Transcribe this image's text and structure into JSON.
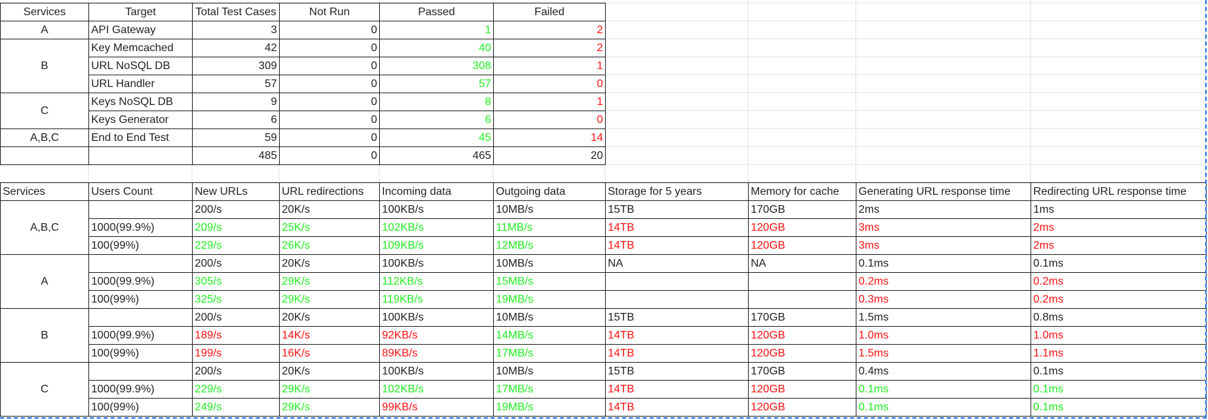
{
  "summary": {
    "headers": [
      "Services",
      "Target",
      "Total Test Cases",
      "Not Run",
      "Passed",
      "Failed"
    ],
    "rows": [
      {
        "service": "A",
        "target": "API Gateway",
        "total": "3",
        "not_run": "0",
        "passed": "1",
        "failed": "2"
      },
      {
        "service": "B",
        "target": "Key Memcached",
        "total": "42",
        "not_run": "0",
        "passed": "40",
        "failed": "2"
      },
      {
        "service": "",
        "target": "URL NoSQL DB",
        "total": "309",
        "not_run": "0",
        "passed": "308",
        "failed": "1"
      },
      {
        "service": "",
        "target": "URL Handler",
        "total": "57",
        "not_run": "0",
        "passed": "57",
        "failed": "0"
      },
      {
        "service": "C",
        "target": "Keys NoSQL DB",
        "total": "9",
        "not_run": "0",
        "passed": "8",
        "failed": "1"
      },
      {
        "service": "",
        "target": "Keys Generator",
        "total": "6",
        "not_run": "0",
        "passed": "6",
        "failed": "0"
      },
      {
        "service": "A,B,C",
        "target": "End to End Test",
        "total": "59",
        "not_run": "0",
        "passed": "45",
        "failed": "14"
      }
    ],
    "totals": {
      "total": "485",
      "not_run": "0",
      "passed": "465",
      "failed": "20"
    }
  },
  "perf": {
    "headers": [
      "Services",
      "Users Count",
      "New URLs",
      "URL redirections",
      "Incoming data",
      "Outgoing data",
      "Storage for 5 years",
      "Memory for cache",
      "Generating URL response time",
      "Redirecting URL response time"
    ],
    "groups": [
      {
        "service": "A,B,C",
        "rows": [
          {
            "users": "",
            "cells": [
              [
                "200/s",
                "n"
              ],
              [
                "20K/s",
                "n"
              ],
              [
                "100KB/s",
                "n"
              ],
              [
                "10MB/s",
                "n"
              ],
              [
                "15TB",
                "n"
              ],
              [
                "170GB",
                "n"
              ],
              [
                "2ms",
                "n"
              ],
              [
                "1ms",
                "n"
              ]
            ]
          },
          {
            "users": "1000(99.9%)",
            "cells": [
              [
                "209/s",
                "g"
              ],
              [
                "25K/s",
                "g"
              ],
              [
                "102KB/s",
                "g"
              ],
              [
                "11MB/s",
                "g"
              ],
              [
                "14TB",
                "r"
              ],
              [
                "120GB",
                "r"
              ],
              [
                "3ms",
                "r"
              ],
              [
                "2ms",
                "r"
              ]
            ]
          },
          {
            "users": "100(99%)",
            "cells": [
              [
                "229/s",
                "g"
              ],
              [
                "26K/s",
                "g"
              ],
              [
                "109KB/s",
                "g"
              ],
              [
                "12MB/s",
                "g"
              ],
              [
                "14TB",
                "r"
              ],
              [
                "120GB",
                "r"
              ],
              [
                "3ms",
                "r"
              ],
              [
                "2ms",
                "r"
              ]
            ]
          }
        ]
      },
      {
        "service": "A",
        "rows": [
          {
            "users": "",
            "cells": [
              [
                "200/s",
                "n"
              ],
              [
                "20K/s",
                "n"
              ],
              [
                "100KB/s",
                "n"
              ],
              [
                "10MB/s",
                "n"
              ],
              [
                "NA",
                "n"
              ],
              [
                "NA",
                "n"
              ],
              [
                "0.1ms",
                "n"
              ],
              [
                "0.1ms",
                "n"
              ]
            ]
          },
          {
            "users": "1000(99.9%)",
            "cells": [
              [
                "305/s",
                "g"
              ],
              [
                "29K/s",
                "g"
              ],
              [
                "112KB/s",
                "g"
              ],
              [
                "15MB/s",
                "g"
              ],
              [
                "",
                "n"
              ],
              [
                "",
                "n"
              ],
              [
                "0.2ms",
                "r"
              ],
              [
                "0.2ms",
                "r"
              ]
            ]
          },
          {
            "users": "100(99%)",
            "cells": [
              [
                "325/s",
                "g"
              ],
              [
                "29K/s",
                "g"
              ],
              [
                "119KB/s",
                "g"
              ],
              [
                "19MB/s",
                "g"
              ],
              [
                "",
                "n"
              ],
              [
                "",
                "n"
              ],
              [
                "0.3ms",
                "r"
              ],
              [
                "0.2ms",
                "r"
              ]
            ]
          }
        ]
      },
      {
        "service": "B",
        "rows": [
          {
            "users": "",
            "cells": [
              [
                "200/s",
                "n"
              ],
              [
                "20K/s",
                "n"
              ],
              [
                "100KB/s",
                "n"
              ],
              [
                "10MB/s",
                "n"
              ],
              [
                "15TB",
                "n"
              ],
              [
                "170GB",
                "n"
              ],
              [
                "1.5ms",
                "n"
              ],
              [
                "0.8ms",
                "n"
              ]
            ]
          },
          {
            "users": "1000(99.9%)",
            "cells": [
              [
                "189/s",
                "r"
              ],
              [
                "14K/s",
                "r"
              ],
              [
                "92KB/s",
                "r"
              ],
              [
                "14MB/s",
                "g"
              ],
              [
                "14TB",
                "r"
              ],
              [
                "120GB",
                "r"
              ],
              [
                "1.0ms",
                "r"
              ],
              [
                "1.0ms",
                "r"
              ]
            ]
          },
          {
            "users": "100(99%)",
            "cells": [
              [
                "199/s",
                "r"
              ],
              [
                "16K/s",
                "r"
              ],
              [
                "89KB/s",
                "r"
              ],
              [
                "17MB/s",
                "g"
              ],
              [
                "14TB",
                "r"
              ],
              [
                "120GB",
                "r"
              ],
              [
                "1.5ms",
                "r"
              ],
              [
                "1.1ms",
                "r"
              ]
            ]
          }
        ]
      },
      {
        "service": "C",
        "rows": [
          {
            "users": "",
            "cells": [
              [
                "200/s",
                "n"
              ],
              [
                "20K/s",
                "n"
              ],
              [
                "100KB/s",
                "n"
              ],
              [
                "10MB/s",
                "n"
              ],
              [
                "15TB",
                "n"
              ],
              [
                "170GB",
                "n"
              ],
              [
                "0.4ms",
                "n"
              ],
              [
                "0.1ms",
                "n"
              ]
            ]
          },
          {
            "users": "1000(99.9%)",
            "cells": [
              [
                "229/s",
                "g"
              ],
              [
                "29K/s",
                "g"
              ],
              [
                "102KB/s",
                "g"
              ],
              [
                "17MB/s",
                "g"
              ],
              [
                "14TB",
                "r"
              ],
              [
                "120GB",
                "r"
              ],
              [
                "0.1ms",
                "g"
              ],
              [
                "0.1ms",
                "g"
              ]
            ]
          },
          {
            "users": "100(99%)",
            "cells": [
              [
                "249/s",
                "g"
              ],
              [
                "29K/s",
                "g"
              ],
              [
                "99KB/s",
                "r"
              ],
              [
                "19MB/s",
                "g"
              ],
              [
                "14TB",
                "r"
              ],
              [
                "120GB",
                "r"
              ],
              [
                "0.1ms",
                "g"
              ],
              [
                "0.1ms",
                "g"
              ]
            ]
          }
        ]
      }
    ]
  },
  "colors": {
    "pass": "#22ee22",
    "fail": "#ff1111",
    "gridline": "#e2e2e2",
    "selection": "#1a73e8"
  }
}
